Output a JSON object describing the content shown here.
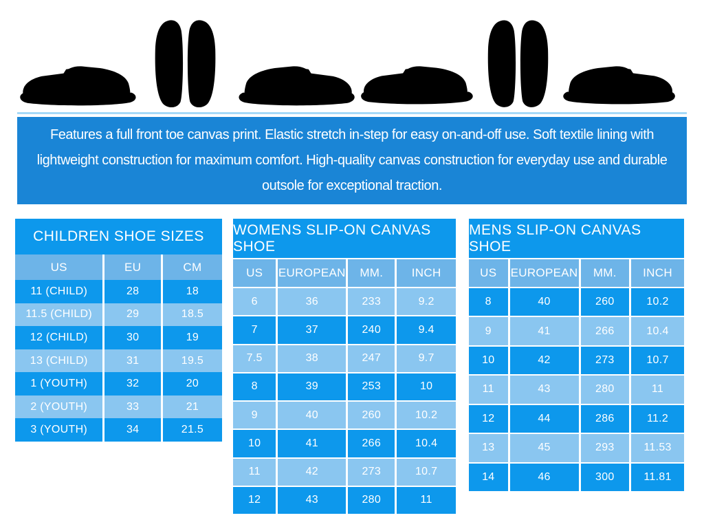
{
  "banner": {
    "text": "Features a full front toe canvas print. Elastic stretch in-step for easy on-and-off use. Soft textile lining with lightweight construction for maximum comfort. High-quality canvas construction for everyday use and durable outsole for exceptional traction."
  },
  "gallery": {
    "items": [
      {
        "name": "black-slip-on-side-view-toe-left"
      },
      {
        "name": "black-slip-on-top-view-pair"
      },
      {
        "name": "black-slip-on-side-view-toe-right"
      },
      {
        "name": "white-slip-on-side-view-toe-left"
      },
      {
        "name": "white-slip-on-top-view-pair"
      },
      {
        "name": "white-slip-on-side-view-toe-right"
      }
    ]
  },
  "size_charts": {
    "children": {
      "title": "CHILDREN SHOE SIZES",
      "columns": [
        "US",
        "EU",
        "CM"
      ],
      "rows": [
        [
          "11 (CHILD)",
          "28",
          "18"
        ],
        [
          "11.5 (CHILD)",
          "29",
          "18.5"
        ],
        [
          "12 (CHILD)",
          "30",
          "19"
        ],
        [
          "13 (CHILD)",
          "31",
          "19.5"
        ],
        [
          "1 (YOUTH)",
          "32",
          "20"
        ],
        [
          "2 (YOUTH)",
          "33",
          "21"
        ],
        [
          "3 (YOUTH)",
          "34",
          "21.5"
        ]
      ],
      "first_row_bright": true
    },
    "womens": {
      "title": "WOMENS  SLIP-ON CANVAS SHOE",
      "columns": [
        "US",
        "EUROPEAN",
        "MM.",
        "INCH"
      ],
      "rows": [
        [
          "6",
          "36",
          "233",
          "9.2"
        ],
        [
          "7",
          "37",
          "240",
          "9.4"
        ],
        [
          "7.5",
          "38",
          "247",
          "9.7"
        ],
        [
          "8",
          "39",
          "253",
          "10"
        ],
        [
          "9",
          "40",
          "260",
          "10.2"
        ],
        [
          "10",
          "41",
          "266",
          "10.4"
        ],
        [
          "11",
          "42",
          "273",
          "10.7"
        ],
        [
          "12",
          "43",
          "280",
          "11"
        ]
      ],
      "first_row_bright": false
    },
    "mens": {
      "title": "MENS SLIP-ON CANVAS SHOE",
      "columns": [
        "US",
        "EUROPEAN",
        "MM.",
        "INCH"
      ],
      "rows": [
        [
          "8",
          "40",
          "260",
          "10.2"
        ],
        [
          "9",
          "41",
          "266",
          "10.4"
        ],
        [
          "10",
          "42",
          "273",
          "10.7"
        ],
        [
          "11",
          "43",
          "280",
          "11"
        ],
        [
          "12",
          "44",
          "286",
          "11.2"
        ],
        [
          "13",
          "45",
          "293",
          "11.53"
        ],
        [
          "14",
          "46",
          "300",
          "11.81"
        ]
      ],
      "first_row_bright": true
    }
  },
  "colors": {
    "banner_bg": "#1a85d6",
    "bright_row": "#0d98ec",
    "light_row": "#8ac6f0",
    "header_row": "#6db4e8",
    "divider": "#a5d9f7",
    "table_text": "#ffffff",
    "page_bg": "#ffffff",
    "black_shoe": "#2c2c2f",
    "black_sole": "#1a1a1c",
    "white_shoe": "#ecebe6",
    "white_sole": "#e0dcd5",
    "black_pair_insole": "#ededee",
    "white_pair_insole": "#d4d4d6"
  }
}
